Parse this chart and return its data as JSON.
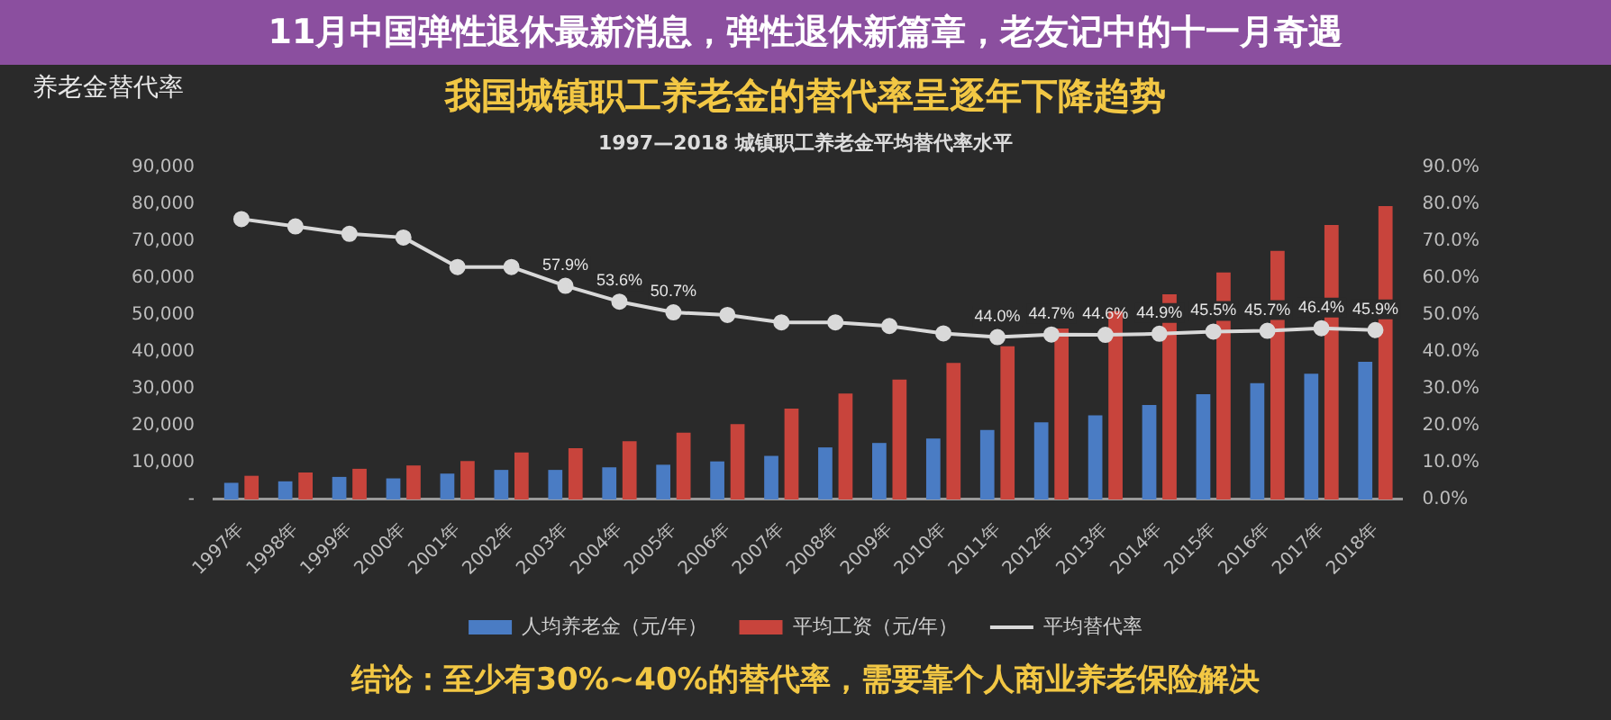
{
  "chart_data": {
    "type": "bar",
    "title": "我国城镇职工养老金的替代率呈逐年下降趋势",
    "subtitle": "1997—2018 城镇职工养老金平均替代率水平",
    "annotations": [
      "养老金替代率",
      "11月中国弹性退休最新消息，弹性退休新篇章，老友记中的十一月奇遇",
      "结论：至少有30%~40%的替代率，需要靠个人商业养老保险解决"
    ],
    "categories": [
      "1997年",
      "1998年",
      "1999年",
      "2000年",
      "2001年",
      "2002年",
      "2003年",
      "2004年",
      "2005年",
      "2006年",
      "2007年",
      "2008年",
      "2009年",
      "2010年",
      "2011年",
      "2012年",
      "2013年",
      "2014年",
      "2015年",
      "2016年",
      "2017年",
      "2018年"
    ],
    "series": [
      {
        "name": "人均养老金（元/年）",
        "color": "#4a7cc4",
        "values": [
          4500,
          4900,
          6100,
          5700,
          7000,
          8000,
          8000,
          8700,
          9400,
          10300,
          11800,
          14100,
          15300,
          16500,
          18800,
          20900,
          22800,
          25600,
          28500,
          31500,
          34100,
          37300
        ]
      },
      {
        "name": "平均工资（元/年）",
        "color": "#c8443c",
        "values": [
          6400,
          7300,
          8300,
          9200,
          10400,
          12700,
          13900,
          15800,
          18100,
          20400,
          24600,
          28700,
          32500,
          37000,
          41500,
          46300,
          51000,
          55600,
          61500,
          67400,
          74400,
          79500
        ]
      },
      {
        "name": "平均替代率",
        "type": "line",
        "axis": "y2",
        "color": "#d9d9d9",
        "values": [
          76,
          74,
          72,
          71,
          63,
          63,
          57.9,
          53.6,
          50.7,
          50,
          48,
          48,
          47,
          45,
          44.0,
          44.7,
          44.6,
          44.9,
          45.5,
          45.7,
          46.4,
          45.9
        ],
        "value_labels": [
          null,
          null,
          null,
          null,
          null,
          null,
          "57.9%",
          "53.6%",
          "50.7%",
          null,
          null,
          null,
          null,
          null,
          "44.0%",
          "44.7%",
          "44.6%",
          "44.9%",
          "45.5%",
          "45.7%",
          "46.4%",
          "45.9%"
        ]
      }
    ],
    "ylim": [
      0,
      90000
    ],
    "yticks": [
      {
        "value": 0,
        "label": "-"
      },
      {
        "value": 10000,
        "label": "10,000"
      },
      {
        "value": 20000,
        "label": "20,000"
      },
      {
        "value": 30000,
        "label": "30,000"
      },
      {
        "value": 40000,
        "label": "40,000"
      },
      {
        "value": 50000,
        "label": "50,000"
      },
      {
        "value": 60000,
        "label": "60,000"
      },
      {
        "value": 70000,
        "label": "70,000"
      },
      {
        "value": 80000,
        "label": "80,000"
      },
      {
        "value": 90000,
        "label": "90,000"
      }
    ],
    "y2lim": [
      0,
      90
    ],
    "y2ticks": [
      {
        "value": 0,
        "label": "0.0%"
      },
      {
        "value": 10,
        "label": "10.0%"
      },
      {
        "value": 20,
        "label": "20.0%"
      },
      {
        "value": 30,
        "label": "30.0%"
      },
      {
        "value": 40,
        "label": "40.0%"
      },
      {
        "value": 50,
        "label": "50.0%"
      },
      {
        "value": 60,
        "label": "60.0%"
      },
      {
        "value": 70,
        "label": "70.0%"
      },
      {
        "value": 80,
        "label": "80.0%"
      },
      {
        "value": 90,
        "label": "90.0%"
      }
    ],
    "legend": "bottom",
    "marker": "circle"
  }
}
